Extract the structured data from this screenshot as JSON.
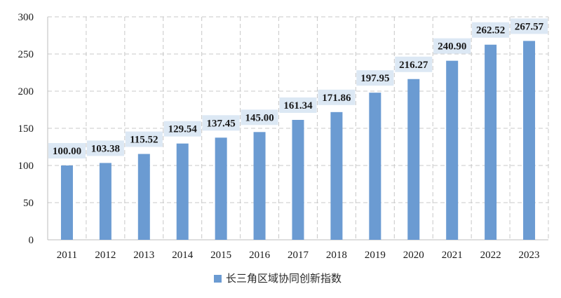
{
  "chart_data": {
    "type": "bar",
    "categories": [
      "2011",
      "2012",
      "2013",
      "2014",
      "2015",
      "2016",
      "2017",
      "2018",
      "2019",
      "2020",
      "2021",
      "2022",
      "2023"
    ],
    "series": [
      {
        "name": "长三角区域协同创新指数",
        "values": [
          100.0,
          103.38,
          115.52,
          129.54,
          137.45,
          145.0,
          161.34,
          171.86,
          197.95,
          216.27,
          240.9,
          262.52,
          267.57
        ],
        "data_labels": [
          "100.00",
          "103.38",
          "115.52",
          "129.54",
          "137.45",
          "145.00",
          "161.34",
          "171.86",
          "197.95",
          "216.27",
          "240.90",
          "262.52",
          "267.57"
        ]
      }
    ],
    "ylim": [
      0,
      300
    ],
    "yticks": [
      "0",
      "50",
      "100",
      "150",
      "200",
      "250",
      "300"
    ],
    "grid": true,
    "legend": "bottom-center",
    "colors": {
      "bar": "#6b9bd2",
      "label_bg": "#dce8f4",
      "grid": "#c8c8c8",
      "axis": "#bdbdbd"
    }
  }
}
